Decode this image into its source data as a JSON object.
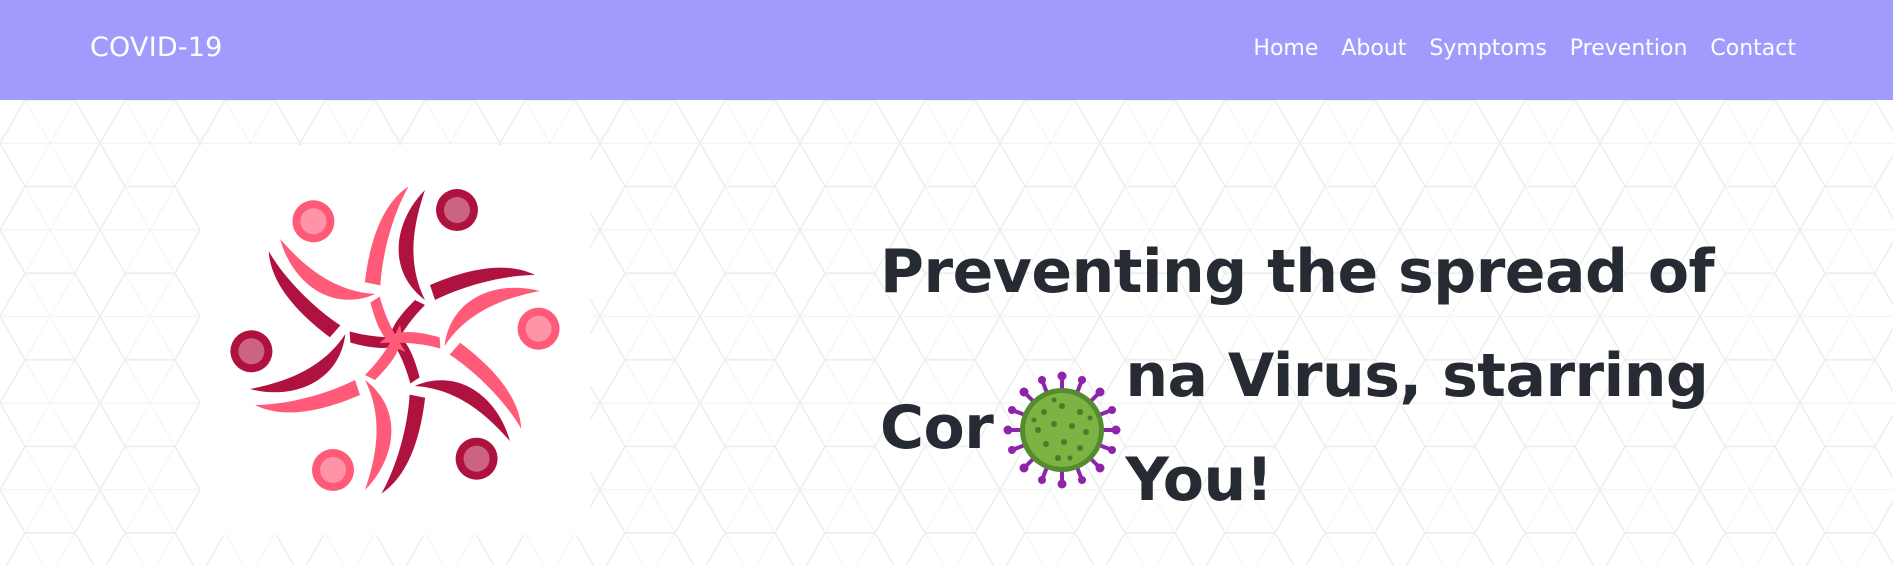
{
  "navbar": {
    "brand": "COVID-19",
    "links": [
      "Home",
      "About",
      "Symptoms",
      "Prevention",
      "Contact"
    ],
    "background_color": "#a29bfe"
  },
  "hero": {
    "headline_line1": "Preventing the spread of",
    "headline_line2_before": "Cor",
    "headline_line2_after": "na Virus, starring You!",
    "logo_icon": "people-circle-logo",
    "virus_icon": "coronavirus-icon",
    "colors": {
      "heading": "#262a33",
      "logo_dark": "#b0123f",
      "logo_light": "#ff5a78",
      "virus_body": "#7cb342",
      "virus_spikes": "#8e24aa"
    }
  }
}
